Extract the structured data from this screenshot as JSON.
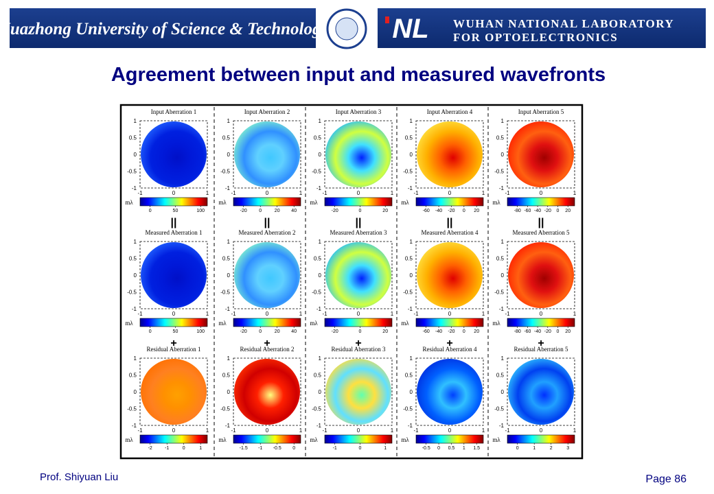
{
  "header": {
    "university": "Huazhong University of Science & Technology",
    "logo_text": "NL",
    "lab_line1": "WUHAN NATIONAL LABORATORY",
    "lab_line2": "FOR OPTOELECTRONICS"
  },
  "title": "Agreement between input and measured wavefronts",
  "figure": {
    "unit": "mλ",
    "y_ticks": [
      "1",
      "0.5",
      "0",
      "-0.5",
      "-1"
    ],
    "x_ticks": [
      "-1",
      "0",
      "1"
    ],
    "separators": [
      "||",
      "+"
    ],
    "rows": [
      {
        "panels": [
          {
            "title": "Input Aberration 1",
            "colorbar": [
              "0",
              "50",
              "100"
            ]
          },
          {
            "title": "Input Aberration 2",
            "colorbar": [
              "-20",
              "0",
              "20",
              "40"
            ]
          },
          {
            "title": "Input Aberration 3",
            "colorbar": [
              "-20",
              "0",
              "20"
            ]
          },
          {
            "title": "Input Aberration 4",
            "colorbar": [
              "-60",
              "-40",
              "-20",
              "0",
              "20"
            ]
          },
          {
            "title": "Input Aberration 5",
            "colorbar": [
              "-80",
              "-60",
              "-40",
              "-20",
              "0",
              "20"
            ]
          }
        ]
      },
      {
        "panels": [
          {
            "title": "Measured Aberration 1",
            "colorbar": [
              "0",
              "50",
              "100"
            ]
          },
          {
            "title": "Measured Aberration 2",
            "colorbar": [
              "-20",
              "0",
              "20",
              "40"
            ]
          },
          {
            "title": "Measured Aberration 3",
            "colorbar": [
              "-20",
              "0",
              "20"
            ]
          },
          {
            "title": "Measured Aberration 4",
            "colorbar": [
              "-60",
              "-40",
              "-20",
              "0",
              "20"
            ]
          },
          {
            "title": "Measured Aberration 5",
            "colorbar": [
              "-80",
              "-60",
              "-40",
              "-20",
              "0",
              "20"
            ]
          }
        ]
      },
      {
        "panels": [
          {
            "title": "Residual Aberration 1",
            "colorbar": [
              "-2",
              "-1",
              "0",
              "1"
            ]
          },
          {
            "title": "Residual Aberration 2",
            "colorbar": [
              "-1.5",
              "-1",
              "-0.5",
              "0"
            ]
          },
          {
            "title": "Residual Aberration 3",
            "colorbar": [
              "-1",
              "0",
              "1"
            ]
          },
          {
            "title": "Residual Aberration 4",
            "colorbar": [
              "-0.5",
              "0",
              "0.5",
              "1",
              "1.5"
            ]
          },
          {
            "title": "Residual Aberration 5",
            "colorbar": [
              "0",
              "1",
              "2",
              "3"
            ]
          }
        ]
      }
    ]
  },
  "footer": {
    "author": "Prof. Shiyuan Liu",
    "page": "Page 86"
  }
}
